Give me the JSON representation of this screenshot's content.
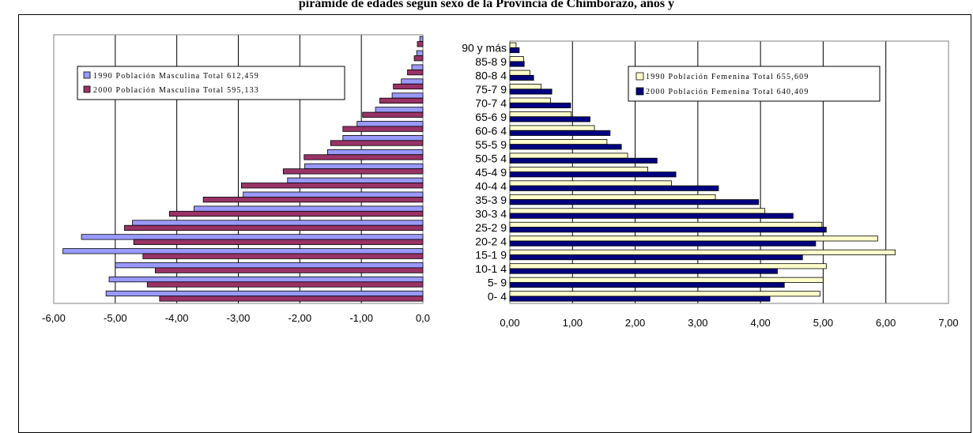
{
  "title": "pirámide de edades segun sexo de la Provincia de Chimborazo, años y",
  "colors": {
    "male_1990": "#9999ff",
    "male_2000": "#993366",
    "female_1990": "#ffffcc",
    "female_2000": "#000080"
  },
  "chart_data": [
    {
      "type": "bar",
      "orientation": "horizontal",
      "panel": "male",
      "xlim": [
        -6,
        0
      ],
      "x_ticks": [
        "-6,00",
        "-5,00",
        "-4,00",
        "-3,00",
        "-2,00",
        "-1,00",
        "0,0"
      ],
      "grid": true,
      "legend_position": "top-left",
      "categories": [
        "0- 4",
        "5- 9",
        "10-1 4",
        "15-1 9",
        "20-2 4",
        "25-2 9",
        "30-3 4",
        "35-3 9",
        "40-4 4",
        "45-4 9",
        "50-5 4",
        "55-5 9",
        "60-6 4",
        "65-6 9",
        "70-7 4",
        "75-7 9",
        "80-8 4",
        "85-8 9",
        "90 y más"
      ],
      "series": [
        {
          "name": "1990 Población Masculina Total 612,459",
          "values": [
            -5.15,
            -5.1,
            -5.0,
            -5.85,
            -5.55,
            -4.72,
            -3.72,
            -2.92,
            -2.2,
            -1.92,
            -1.55,
            -1.3,
            -1.07,
            -0.77,
            -0.5,
            -0.35,
            -0.18,
            -0.1,
            -0.05
          ]
        },
        {
          "name": "2000 Población Masculina Total 595,133",
          "values": [
            -4.28,
            -4.48,
            -4.35,
            -4.55,
            -4.7,
            -4.85,
            -4.12,
            -3.57,
            -2.95,
            -2.27,
            -1.93,
            -1.5,
            -1.3,
            -0.98,
            -0.7,
            -0.48,
            -0.25,
            -0.14,
            -0.09
          ]
        }
      ]
    },
    {
      "type": "bar",
      "orientation": "horizontal",
      "panel": "female",
      "xlim": [
        0,
        7
      ],
      "x_ticks": [
        "0,00",
        "1,00",
        "2,00",
        "3,00",
        "4,00",
        "5,00",
        "6,00",
        "7,00"
      ],
      "grid": true,
      "legend_position": "top-right",
      "categories": [
        "0- 4",
        "5- 9",
        "10-1 4",
        "15-1 9",
        "20-2 4",
        "25-2 9",
        "30-3 4",
        "35-3 9",
        "40-4 4",
        "45-4 9",
        "50-5 4",
        "55-5 9",
        "60-6 4",
        "65-6 9",
        "70-7 4",
        "75-7 9",
        "80-8 4",
        "85-8 9",
        "90 y más"
      ],
      "series": [
        {
          "name": "1990 Población Femenina Total 655,609",
          "values": [
            4.95,
            5.0,
            5.05,
            6.15,
            5.87,
            4.98,
            4.07,
            3.28,
            2.58,
            2.2,
            1.88,
            1.55,
            1.35,
            0.98,
            0.65,
            0.5,
            0.32,
            0.22,
            0.1
          ]
        },
        {
          "name": "2000 Población Femenina Total 640,409",
          "values": [
            4.15,
            4.38,
            4.27,
            4.67,
            4.88,
            5.05,
            4.52,
            3.97,
            3.33,
            2.65,
            2.35,
            1.78,
            1.6,
            1.28,
            0.97,
            0.67,
            0.38,
            0.23,
            0.15
          ]
        }
      ]
    }
  ]
}
